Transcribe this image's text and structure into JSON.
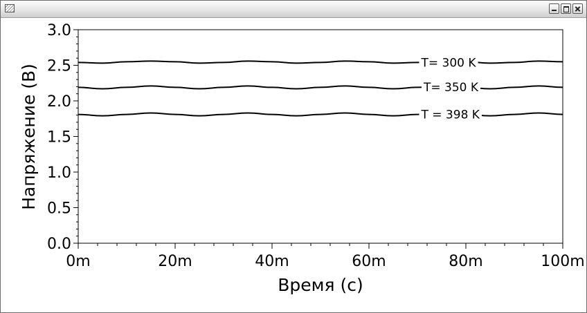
{
  "window": {
    "title": "",
    "app_icon": "chart-window-icon",
    "controls": [
      "minimize-icon",
      "maximize-icon",
      "close-icon"
    ]
  },
  "chart_data": {
    "type": "line",
    "title": "",
    "xlabel": "Время (с)",
    "ylabel": "Напряжение (В)",
    "xlim": [
      0,
      0.1
    ],
    "ylim": [
      0,
      3.0
    ],
    "x_ticks": [
      {
        "value": 0,
        "label": "0m"
      },
      {
        "value": 0.02,
        "label": "20m"
      },
      {
        "value": 0.04,
        "label": "40m"
      },
      {
        "value": 0.06,
        "label": "60m"
      },
      {
        "value": 0.08,
        "label": "80m"
      },
      {
        "value": 0.1,
        "label": "100m"
      }
    ],
    "y_ticks": [
      {
        "value": 0.0,
        "label": "0.0"
      },
      {
        "value": 0.5,
        "label": "0.5"
      },
      {
        "value": 1.0,
        "label": "1.0"
      },
      {
        "value": 1.5,
        "label": "1.5"
      },
      {
        "value": 2.0,
        "label": "2.0"
      },
      {
        "value": 2.5,
        "label": "2.5"
      },
      {
        "value": 3.0,
        "label": "3.0"
      }
    ],
    "grid": false,
    "line_color": "#000000",
    "series": [
      {
        "name": "T= 300 K",
        "label_at_x": 0.0705,
        "x": [
          0,
          0.005,
          0.01,
          0.015,
          0.02,
          0.025,
          0.03,
          0.035,
          0.04,
          0.045,
          0.05,
          0.055,
          0.06,
          0.065,
          0.07,
          0.075,
          0.08,
          0.085,
          0.09,
          0.095,
          0.1
        ],
        "y": [
          2.54,
          2.53,
          2.55,
          2.56,
          2.55,
          2.53,
          2.54,
          2.56,
          2.55,
          2.53,
          2.54,
          2.56,
          2.55,
          2.53,
          2.54,
          2.55,
          2.55,
          2.53,
          2.54,
          2.56,
          2.55
        ]
      },
      {
        "name": "T= 350 K",
        "label_at_x": 0.071,
        "x": [
          0,
          0.005,
          0.01,
          0.015,
          0.02,
          0.025,
          0.03,
          0.035,
          0.04,
          0.045,
          0.05,
          0.055,
          0.06,
          0.065,
          0.07,
          0.075,
          0.08,
          0.085,
          0.09,
          0.095,
          0.1
        ],
        "y": [
          2.19,
          2.17,
          2.19,
          2.21,
          2.19,
          2.17,
          2.19,
          2.21,
          2.19,
          2.17,
          2.19,
          2.21,
          2.19,
          2.17,
          2.19,
          2.2,
          2.19,
          2.17,
          2.19,
          2.21,
          2.19
        ]
      },
      {
        "name": "T = 398 K",
        "label_at_x": 0.0705,
        "x": [
          0,
          0.005,
          0.01,
          0.015,
          0.02,
          0.025,
          0.03,
          0.035,
          0.04,
          0.045,
          0.05,
          0.055,
          0.06,
          0.065,
          0.07,
          0.075,
          0.08,
          0.085,
          0.09,
          0.095,
          0.1
        ],
        "y": [
          1.81,
          1.79,
          1.81,
          1.83,
          1.81,
          1.79,
          1.81,
          1.83,
          1.81,
          1.79,
          1.81,
          1.83,
          1.81,
          1.79,
          1.81,
          1.82,
          1.81,
          1.79,
          1.81,
          1.83,
          1.81
        ]
      }
    ]
  }
}
